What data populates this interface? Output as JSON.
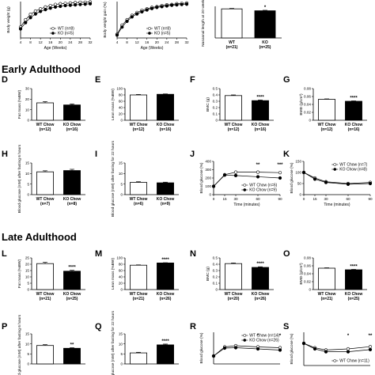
{
  "sections": [
    {
      "key": "early",
      "title": "Early Adulthood"
    },
    {
      "key": "late",
      "title": "Late Adulthood"
    }
  ],
  "colors": {
    "wt": "#ffffff",
    "ko": "#000000",
    "axis": "#000000"
  },
  "chart_data": [
    {
      "id": "top-a",
      "type": "line",
      "label": "",
      "ylabel": "Body weight (g)",
      "xlabel": "Age (Weeks)",
      "xticks": [
        4,
        8,
        12,
        16,
        20,
        24,
        28,
        32
      ],
      "yticks": [],
      "xlim": [
        4,
        32
      ],
      "ylim": [
        0,
        10
      ],
      "legend": [
        "WT (n=8)",
        "KO (n=5)"
      ],
      "legend_pos": "bottom-right",
      "series": [
        {
          "name": "WT (n=8)",
          "x": [
            4,
            6,
            8,
            10,
            12,
            14,
            16,
            18,
            20,
            22,
            24,
            26,
            28,
            30,
            32
          ],
          "values": [
            3,
            5,
            6.5,
            7.4,
            8,
            8.5,
            8.9,
            9.2,
            9.4,
            9.5,
            9.6,
            9.7,
            9.8,
            9.8,
            9.9
          ],
          "marker": "open"
        },
        {
          "name": "KO (n=5)",
          "x": [
            4,
            6,
            8,
            10,
            12,
            14,
            16,
            18,
            20,
            22,
            24,
            26,
            28,
            30,
            32
          ],
          "values": [
            2.5,
            4.2,
            5.6,
            6.6,
            7.3,
            7.8,
            8.2,
            8.5,
            8.7,
            8.9,
            9.0,
            9.1,
            9.2,
            9.3,
            9.4
          ],
          "marker": "filled"
        }
      ]
    },
    {
      "id": "top-b",
      "type": "line",
      "label": "",
      "ylabel": "Body weight gain (%)",
      "xlabel": "Age (Weeks)",
      "xticks": [
        4,
        8,
        12,
        16,
        20,
        24,
        28,
        32
      ],
      "yticks": [],
      "xlim": [
        4,
        32
      ],
      "ylim": [
        0,
        10
      ],
      "legend": [
        "WT (n=8)",
        "KO (n=5)"
      ],
      "legend_pos": "bottom-right",
      "series": [
        {
          "name": "WT (n=8)",
          "x": [
            4,
            6,
            8,
            10,
            12,
            14,
            16,
            18,
            20,
            22,
            24,
            26,
            28,
            30,
            32
          ],
          "values": [
            1,
            3.5,
            5,
            6.2,
            7,
            7.6,
            8,
            8.4,
            8.6,
            8.9,
            9.1,
            9.2,
            9.4,
            9.5,
            9.6
          ],
          "marker": "open"
        },
        {
          "name": "KO (n=5)",
          "x": [
            4,
            6,
            8,
            10,
            12,
            14,
            16,
            18,
            20,
            22,
            24,
            26,
            28,
            30,
            32
          ],
          "values": [
            0.8,
            3,
            4.6,
            5.8,
            6.6,
            7.2,
            7.7,
            8.1,
            8.4,
            8.6,
            8.8,
            9.0,
            9.1,
            9.2,
            9.3
          ],
          "marker": "filled"
        }
      ]
    },
    {
      "id": "top-c",
      "type": "bar",
      "label": "",
      "ylabel": "Nasoanal length at 20 weeks",
      "ylim": [
        0,
        10
      ],
      "yticks": [],
      "categories": [
        "WT\n(n=21)",
        "KO\n(n=25)"
      ],
      "values": [
        9.2,
        8.6
      ],
      "errors": [
        0.15,
        0.15
      ],
      "sig": [
        "",
        "*"
      ]
    },
    {
      "id": "D",
      "type": "bar",
      "label": "D",
      "ylabel": "Fat mass (%BW)",
      "ylim": [
        0,
        30
      ],
      "yticks": [
        0,
        10,
        20,
        30
      ],
      "categories": [
        "WT Chow\n(n=12)",
        "KO Chow\n(n=16)"
      ],
      "values": [
        16.5,
        14.5
      ],
      "errors": [
        1.2,
        1.0
      ],
      "sig": [
        "",
        ""
      ]
    },
    {
      "id": "E",
      "type": "bar",
      "label": "E",
      "ylabel": "Lean mass (%BW)",
      "ylim": [
        0,
        100
      ],
      "yticks": [
        0,
        20,
        40,
        60,
        80,
        100
      ],
      "categories": [
        "WT Chow\n(n=12)",
        "KO Chow\n(n=16)"
      ],
      "values": [
        80,
        82
      ],
      "errors": [
        1.5,
        1.2
      ],
      "sig": [
        "",
        ""
      ]
    },
    {
      "id": "F",
      "type": "bar",
      "label": "F",
      "ylabel": "BMC (g)",
      "ylim": [
        0,
        0.5
      ],
      "yticks": [
        0.0,
        0.1,
        0.2,
        0.3,
        0.4,
        0.5
      ],
      "categories": [
        "WT Chow\n(n=12)",
        "KO Chow\n(n=16)"
      ],
      "values": [
        0.39,
        0.31
      ],
      "errors": [
        0.01,
        0.01
      ],
      "sig": [
        "",
        "****"
      ]
    },
    {
      "id": "G",
      "type": "bar",
      "label": "G",
      "ylabel": "BMD (g/cm²)",
      "ylim": [
        0,
        0.08
      ],
      "yticks": [
        0.0,
        0.02,
        0.04,
        0.06,
        0.08
      ],
      "categories": [
        "WT Chow\n(n=12)",
        "KO Chow\n(n=16)"
      ],
      "values": [
        0.053,
        0.048
      ],
      "errors": [
        0.001,
        0.001
      ],
      "sig": [
        "",
        "****"
      ]
    },
    {
      "id": "H",
      "type": "bar",
      "label": "H",
      "ylabel": "Blood glucose (mM) after fasting 6 hours",
      "ylim": [
        0,
        15
      ],
      "yticks": [
        0,
        5,
        10,
        15
      ],
      "categories": [
        "WT Chow\n(n=7)",
        "KO Chow\n(n=8)"
      ],
      "values": [
        10.8,
        11.4
      ],
      "errors": [
        0.5,
        0.6
      ],
      "sig": [
        "",
        ""
      ]
    },
    {
      "id": "I",
      "type": "bar",
      "label": "I",
      "ylabel": "Blood glucose (mM) after fasting for 22 hours",
      "ylim": [
        0,
        15
      ],
      "yticks": [
        0,
        5,
        10,
        15
      ],
      "categories": [
        "WT Chow\n(n=6)",
        "KO Chow\n(n=9)"
      ],
      "values": [
        5.8,
        5.6
      ],
      "errors": [
        0.3,
        0.3
      ],
      "sig": [
        "",
        ""
      ]
    },
    {
      "id": "J",
      "type": "line",
      "label": "J",
      "ylabel": "Blood glucose (%)",
      "xlabel": "Time (minutes)",
      "xticks": [
        0,
        15,
        30,
        60,
        90
      ],
      "yticks": [
        0,
        100,
        200,
        300,
        400
      ],
      "xlim": [
        0,
        90
      ],
      "ylim": [
        0,
        400
      ],
      "legend": [
        "WT Chow (n=6)",
        "KO Chow (n=9)"
      ],
      "legend_pos": "bottom-right",
      "stars": [
        {
          "x": 60,
          "text": "**"
        },
        {
          "x": 90,
          "text": "***"
        }
      ],
      "series": [
        {
          "name": "WT Chow (n=6)",
          "x": [
            0,
            15,
            30,
            60,
            90
          ],
          "values": [
            100,
            240,
            270,
            270,
            265
          ],
          "marker": "open"
        },
        {
          "name": "KO Chow (n=9)",
          "x": [
            0,
            15,
            30,
            60,
            90
          ],
          "values": [
            100,
            235,
            230,
            215,
            200
          ],
          "marker": "filled"
        }
      ]
    },
    {
      "id": "K",
      "type": "line",
      "label": "K",
      "ylabel": "Blood glucose (%)",
      "xlabel": "Time (minutes)",
      "xticks": [
        0,
        15,
        30,
        60,
        90
      ],
      "yticks": [
        0,
        50,
        100,
        150
      ],
      "xlim": [
        0,
        90
      ],
      "ylim": [
        0,
        150
      ],
      "legend": [
        "WT Chow (n=7)",
        "KO Chow (n=8)"
      ],
      "legend_pos": "top-right",
      "stars": [],
      "series": [
        {
          "name": "WT Chow (n=7)",
          "x": [
            0,
            15,
            30,
            60,
            90
          ],
          "values": [
            100,
            75,
            58,
            50,
            55
          ],
          "marker": "open"
        },
        {
          "name": "KO Chow (n=8)",
          "x": [
            0,
            15,
            30,
            60,
            90
          ],
          "values": [
            100,
            70,
            55,
            47,
            50
          ],
          "marker": "filled"
        }
      ]
    },
    {
      "id": "L",
      "type": "bar",
      "label": "L",
      "ylabel": "Fat mass (%BW)",
      "ylim": [
        0,
        25
      ],
      "yticks": [
        0,
        5,
        10,
        15,
        20,
        25
      ],
      "categories": [
        "WT Chow\n(n=21)",
        "KO Chow\n(n=25)"
      ],
      "values": [
        20.5,
        14.5
      ],
      "errors": [
        1.0,
        0.7
      ],
      "sig": [
        "",
        "****"
      ]
    },
    {
      "id": "M",
      "type": "bar",
      "label": "M",
      "ylabel": "Lean mass (%BW)",
      "ylim": [
        0,
        100
      ],
      "yticks": [
        0,
        20,
        40,
        60,
        80,
        100
      ],
      "categories": [
        "WT Chow\n(n=21)",
        "KO Chow\n(n=26)"
      ],
      "values": [
        77,
        84
      ],
      "errors": [
        1.0,
        0.8
      ],
      "sig": [
        "",
        "****"
      ]
    },
    {
      "id": "N",
      "type": "bar",
      "label": "N",
      "ylabel": "BMC (g)",
      "ylim": [
        0,
        0.5
      ],
      "yticks": [
        0.0,
        0.1,
        0.2,
        0.3,
        0.4,
        0.5
      ],
      "categories": [
        "WT Chow\n(n=20)",
        "KO Chow\n(n=26)"
      ],
      "values": [
        0.41,
        0.35
      ],
      "errors": [
        0.01,
        0.01
      ],
      "sig": [
        "",
        "****"
      ]
    },
    {
      "id": "O",
      "type": "bar",
      "label": "O",
      "ylabel": "BMD (g/cm²)",
      "ylim": [
        0,
        0.08
      ],
      "yticks": [
        0.0,
        0.02,
        0.04,
        0.06,
        0.08
      ],
      "categories": [
        "WT Chow\n(n=21)",
        "KO Chow\n(n=25)"
      ],
      "values": [
        0.054,
        0.05
      ],
      "errors": [
        0.001,
        0.001
      ],
      "sig": [
        "",
        "****"
      ]
    },
    {
      "id": "P",
      "type": "bar",
      "label": "P",
      "ylabel": "Blood glucose (mM) after fasting 6 hours",
      "ylim": [
        0,
        15
      ],
      "yticks": [
        0,
        5,
        10,
        15
      ],
      "categories": [
        "",
        ""
      ],
      "values": [
        9.2,
        7.8
      ],
      "errors": [
        0.4,
        0.3
      ],
      "sig": [
        "",
        "**"
      ]
    },
    {
      "id": "Q",
      "type": "bar",
      "label": "Q",
      "ylabel": "Blood glucose (mM) after fasting for 22 hours",
      "ylim": [
        0,
        15
      ],
      "yticks": [
        0,
        5,
        10,
        15
      ],
      "categories": [
        "",
        ""
      ],
      "values": [
        5.5,
        9.5
      ],
      "errors": [
        0.3,
        0.4
      ],
      "sig": [
        "",
        "****"
      ]
    },
    {
      "id": "R",
      "type": "line",
      "label": "R",
      "ylabel": "Blood glucose (%)",
      "xlabel": "",
      "xticks": [],
      "yticks": [],
      "xlim": [
        0,
        90
      ],
      "ylim": [
        0,
        400
      ],
      "legend": [
        "WT Chow (n=14)",
        "KO Chow (n=26)"
      ],
      "legend_pos": "top-right",
      "stars": [
        {
          "x": 60,
          "text": "*"
        },
        {
          "x": 90,
          "text": "*"
        }
      ],
      "series": [
        {
          "name": "WT Chow (n=14)",
          "x": [
            0,
            15,
            30,
            60,
            90
          ],
          "values": [
            100,
            215,
            230,
            215,
            205
          ],
          "marker": "open"
        },
        {
          "name": "KO Chow (n=26)",
          "x": [
            0,
            15,
            30,
            60,
            90
          ],
          "values": [
            100,
            200,
            205,
            190,
            175
          ],
          "marker": "filled"
        }
      ]
    },
    {
      "id": "S",
      "type": "line",
      "label": "S",
      "ylabel": "Blood glucose (%)",
      "xlabel": "",
      "xticks": [],
      "yticks": [],
      "xlim": [
        0,
        90
      ],
      "ylim": [
        0,
        150
      ],
      "legend": [
        "WT Chow (n=11)"
      ],
      "legend_pos": "bottom-right",
      "stars": [
        {
          "x": 60,
          "text": "*"
        },
        {
          "x": 90,
          "text": "**"
        }
      ],
      "series": [
        {
          "name": "WT Chow (n=11)",
          "x": [
            0,
            15,
            30,
            60,
            90
          ],
          "values": [
            100,
            80,
            70,
            75,
            85
          ],
          "marker": "open"
        },
        {
          "name": "",
          "x": [
            0,
            15,
            30,
            60,
            90
          ],
          "values": [
            100,
            75,
            62,
            62,
            72
          ],
          "marker": "filled"
        }
      ]
    }
  ]
}
